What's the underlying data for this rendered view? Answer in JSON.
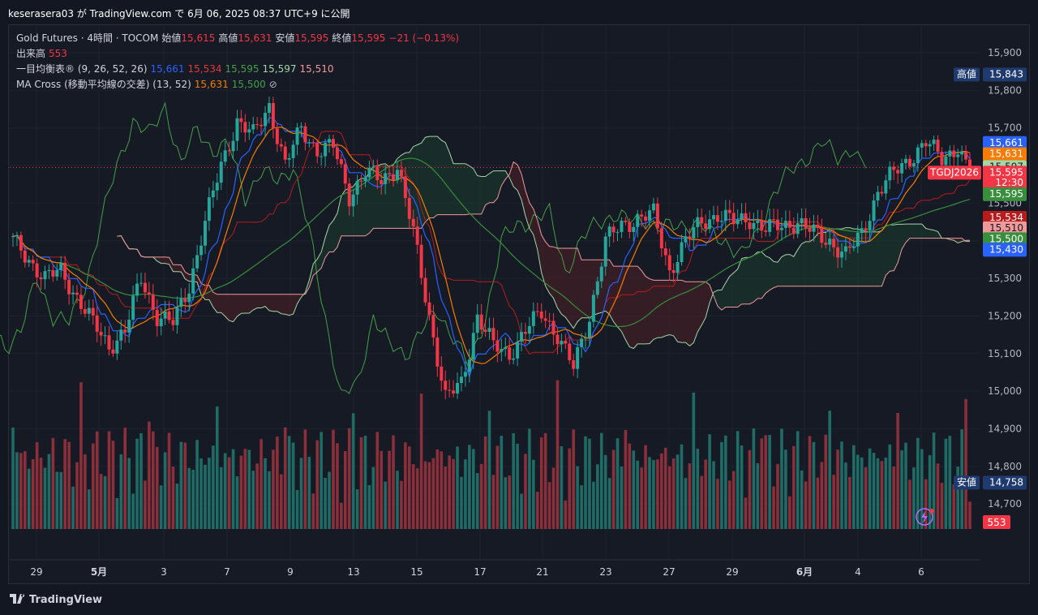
{
  "header": {
    "publish_line": "keserasera03 が TradingView.com で 6月 06, 2025 08:37 UTC+9 に公開"
  },
  "legend": {
    "line1": {
      "symbol": "Gold Futures · 4時間 · TOCOM",
      "open_label": "始値",
      "open": "15,615",
      "high_label": "高値",
      "high": "15,631",
      "low_label": "安値",
      "low": "15,595",
      "close_label": "終値",
      "close": "15,595",
      "change": "−21 (−0.13%)"
    },
    "line2": {
      "label": "出来高",
      "value": "553"
    },
    "line3": {
      "label": "一目均衡表® (9, 26, 52, 26)",
      "v1": "15,661",
      "v2": "15,534",
      "v3": "15,595",
      "v4": "15,597",
      "v5": "15,510"
    },
    "line4": {
      "label": "MA Cross (移動平均線の交差) (13, 52)",
      "v1": "15,631",
      "v2": "15,500",
      "icon": "eye-slash-icon"
    }
  },
  "price_axis": {
    "ticks": [
      "15,900",
      "15,800",
      "15,700",
      "15,600",
      "15,500",
      "15,400",
      "15,300",
      "15,200",
      "15,100",
      "15,000",
      "14,900",
      "14,800",
      "14,700"
    ],
    "tick_values": [
      15900,
      15800,
      15700,
      15600,
      15500,
      15400,
      15300,
      15200,
      15100,
      15000,
      14900,
      14800,
      14700
    ],
    "high_tag_label": "高値",
    "high_tag_value": "15,843",
    "low_tag_label": "安値",
    "low_tag_value": "14,758",
    "tags": [
      {
        "text": "15,661",
        "value": 15661,
        "color": "#2962ff"
      },
      {
        "text": "15,631",
        "value": 15631,
        "color": "#f57c00"
      },
      {
        "text": "15,597",
        "value": 15597,
        "color": "#a5d6a7"
      },
      {
        "text": "15,595",
        "value": 15582,
        "color": "#f23645"
      },
      {
        "text": "12:30",
        "value": 15555,
        "color": "#f23645"
      },
      {
        "text": "15,595",
        "value": 15525,
        "color": "#388e3c"
      },
      {
        "text": "15,534",
        "value": 15462,
        "color": "#b71c1c"
      },
      {
        "text": "15,510",
        "value": 15434,
        "color": "#ef9a9a"
      },
      {
        "text": "15,500",
        "value": 15405,
        "color": "#388e3c"
      },
      {
        "text": "15,430",
        "value": 15377,
        "color": "#2962ff"
      }
    ],
    "symbol_tag": "TGDJ2026",
    "volume_tag": "553"
  },
  "time_axis": {
    "labels": [
      "29",
      "5月",
      "3",
      "7",
      "9",
      "13",
      "15",
      "17",
      "21",
      "23",
      "27",
      "29",
      "6月",
      "4",
      "6"
    ]
  },
  "chart_data": {
    "type": "candlestick",
    "title": "Gold Futures · 4時間 · TOCOM",
    "price_range": [
      14640,
      15960
    ],
    "current_price": 15595,
    "day_high": 15843,
    "day_low": 14758,
    "colors": {
      "up": "#26a69a",
      "down": "#f23645",
      "tenkan": "#2962ff",
      "kijun": "#b71c1c",
      "chikou": "#43a047",
      "span_a": "#a5d6a7",
      "span_b": "#ef9a9a",
      "ma_fast": "#f57c00",
      "ma_slow": "#388e3c"
    },
    "anchors": [
      [
        0,
        15400
      ],
      [
        4,
        15350
      ],
      [
        8,
        15300
      ],
      [
        12,
        15320
      ],
      [
        16,
        15250
      ],
      [
        20,
        15180
      ],
      [
        24,
        15120
      ],
      [
        28,
        15160
      ],
      [
        32,
        15300
      ],
      [
        36,
        15200
      ],
      [
        40,
        15180
      ],
      [
        44,
        15280
      ],
      [
        48,
        15450
      ],
      [
        52,
        15600
      ],
      [
        56,
        15720
      ],
      [
        60,
        15680
      ],
      [
        64,
        15760
      ],
      [
        68,
        15600
      ],
      [
        72,
        15700
      ],
      [
        76,
        15640
      ],
      [
        80,
        15650
      ],
      [
        84,
        15520
      ],
      [
        88,
        15580
      ],
      [
        92,
        15560
      ],
      [
        96,
        15600
      ],
      [
        100,
        15420
      ],
      [
        104,
        15200
      ],
      [
        108,
        14980
      ],
      [
        112,
        15020
      ],
      [
        116,
        15200
      ],
      [
        120,
        15120
      ],
      [
        124,
        15100
      ],
      [
        128,
        15160
      ],
      [
        132,
        15210
      ],
      [
        136,
        15150
      ],
      [
        140,
        15060
      ],
      [
        144,
        15200
      ],
      [
        148,
        15400
      ],
      [
        152,
        15440
      ],
      [
        156,
        15460
      ],
      [
        160,
        15470
      ],
      [
        164,
        15320
      ],
      [
        168,
        15400
      ],
      [
        172,
        15450
      ],
      [
        176,
        15470
      ],
      [
        180,
        15450
      ],
      [
        184,
        15460
      ],
      [
        188,
        15430
      ],
      [
        192,
        15440
      ],
      [
        196,
        15450
      ],
      [
        200,
        15420
      ],
      [
        204,
        15400
      ],
      [
        208,
        15360
      ],
      [
        212,
        15420
      ],
      [
        216,
        15530
      ],
      [
        220,
        15580
      ],
      [
        224,
        15620
      ],
      [
        228,
        15660
      ],
      [
        232,
        15620
      ],
      [
        236,
        15650
      ],
      [
        238,
        15597
      ]
    ]
  }
}
